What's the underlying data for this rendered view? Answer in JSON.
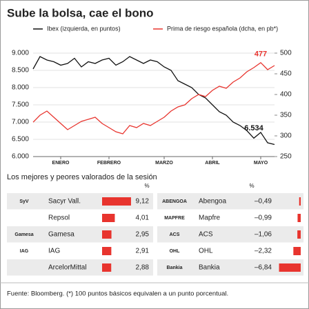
{
  "chart_data": {
    "type": "line",
    "title": "Sube la bolsa, cae el bono",
    "categories": [
      null,
      null,
      null,
      null,
      "ENERO",
      null,
      null,
      null,
      null,
      null,
      null,
      "FEBRERO",
      null,
      null,
      null,
      null,
      null,
      null,
      null,
      "MARZO",
      null,
      null,
      null,
      null,
      null,
      null,
      "ABRIL",
      null,
      null,
      null,
      null,
      null,
      null,
      "MAYO",
      null,
      null
    ],
    "series": [
      {
        "name": "Ibex (izquierda, en puntos)",
        "color": "#111111",
        "axis": "y",
        "values": [
          8540,
          8900,
          8800,
          8750,
          8650,
          8700,
          8850,
          8600,
          8750,
          8700,
          8800,
          8850,
          8650,
          8750,
          8900,
          8800,
          8700,
          8800,
          8750,
          8600,
          8500,
          8200,
          8100,
          8000,
          7800,
          7700,
          7500,
          7300,
          7200,
          7000,
          6900,
          6750,
          6534,
          6700,
          6400,
          6350
        ]
      },
      {
        "name": "Prima de riesgo española (dcha, en pb*)",
        "color": "#e8342e",
        "axis": "y2",
        "values": [
          333,
          350,
          360,
          345,
          330,
          315,
          325,
          335,
          340,
          345,
          330,
          320,
          310,
          305,
          325,
          320,
          330,
          325,
          335,
          345,
          360,
          370,
          375,
          390,
          400,
          395,
          410,
          420,
          415,
          430,
          440,
          455,
          465,
          477,
          460,
          470
        ]
      }
    ],
    "ylim": [
      6000,
      9000
    ],
    "yticks": [
      {
        "value": 6000,
        "label": "6.000"
      },
      {
        "value": 6500,
        "label": "6.500"
      },
      {
        "value": 7000,
        "label": "7.000"
      },
      {
        "value": 7500,
        "label": "7.500"
      },
      {
        "value": 8000,
        "label": "8.000"
      },
      {
        "value": 8500,
        "label": "8.500"
      },
      {
        "value": 9000,
        "label": "9.000"
      }
    ],
    "y2lim": [
      250,
      500
    ],
    "y2ticks": [
      250,
      300,
      350,
      400,
      450,
      500
    ],
    "grid": true,
    "annotations": [
      "6.534",
      "477"
    ]
  },
  "table": {
    "title": "Los mejores y peores valorados de la sesión",
    "unit": "%",
    "color": "#e8342e",
    "best": [
      {
        "logo": "SyV",
        "name": "Sacyr Vall.",
        "value": 9.12,
        "label": "9,12"
      },
      {
        "logo": "",
        "name": "Repsol",
        "value": 4.01,
        "label": "4,01"
      },
      {
        "logo": "Gamesa",
        "name": "Gamesa",
        "value": 2.95,
        "label": "2,95"
      },
      {
        "logo": "IAG",
        "name": "IAG",
        "value": 2.91,
        "label": "2,91"
      },
      {
        "logo": "",
        "name": "ArcelorMittal",
        "value": 2.88,
        "label": "2,88"
      }
    ],
    "worst": [
      {
        "logo": "ABENGOA",
        "name": "Abengoa",
        "value": -0.49,
        "label": "–0,49"
      },
      {
        "logo": "MAPFRE",
        "name": "Mapfre",
        "value": -0.99,
        "label": "–0,99"
      },
      {
        "logo": "ACS",
        "name": "ACS",
        "value": -1.06,
        "label": "–1,06"
      },
      {
        "logo": "OHL",
        "name": "OHL",
        "value": -2.32,
        "label": "–2,32"
      },
      {
        "logo": "Bankia",
        "name": "Bankia",
        "value": -6.84,
        "label": "–6,84"
      }
    ],
    "footer": "Fuente: Bloomberg. (*) 100 puntos básicos equivalen a un punto porcentual."
  }
}
